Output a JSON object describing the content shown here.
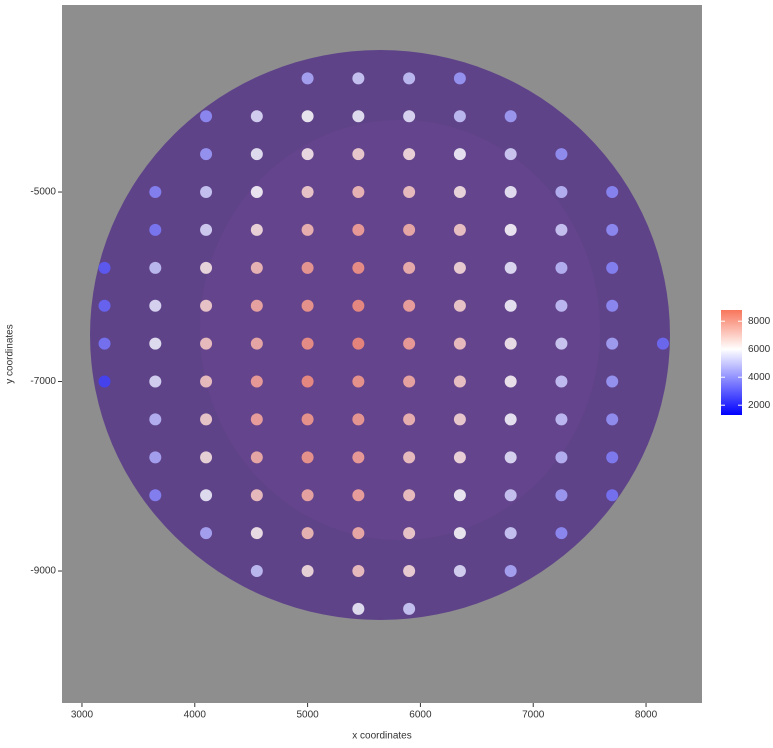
{
  "chart_data": {
    "type": "scatter",
    "x_label": "x coordinates",
    "y_label": "y coordinates",
    "xlim": [
      2823,
      8496
    ],
    "ylim": [
      -10393,
      -3026
    ],
    "xticks": [
      3000,
      4000,
      5000,
      6000,
      7000,
      8000
    ],
    "yticks": [
      -5000,
      -7000,
      -9000
    ],
    "x": [
      5000,
      5450,
      5900,
      6350,
      4100,
      4550,
      5000,
      5450,
      5900,
      6350,
      6800,
      4100,
      4550,
      5000,
      5450,
      5900,
      6350,
      6800,
      7250,
      3650,
      4100,
      4550,
      5000,
      5450,
      5900,
      6350,
      6800,
      7250,
      7700,
      3650,
      4100,
      4550,
      5000,
      5450,
      5900,
      6350,
      6800,
      7250,
      7700,
      3200,
      3650,
      4100,
      4550,
      5000,
      5450,
      5900,
      6350,
      6800,
      7250,
      7700,
      3200,
      3650,
      4100,
      4550,
      5000,
      5450,
      5900,
      6350,
      6800,
      7250,
      7700,
      3200,
      3650,
      4100,
      4550,
      5000,
      5450,
      5900,
      6350,
      6800,
      7250,
      7700,
      8150,
      3200,
      3650,
      4100,
      4550,
      5000,
      5450,
      5900,
      6350,
      6800,
      7250,
      7700,
      3650,
      4100,
      4550,
      5000,
      5450,
      5900,
      6350,
      6800,
      7250,
      7700,
      3650,
      4100,
      4550,
      5000,
      5450,
      5900,
      6350,
      6800,
      7250,
      7700,
      3650,
      4100,
      4550,
      5000,
      5450,
      5900,
      6350,
      6800,
      7250,
      7700,
      4100,
      4550,
      5000,
      5450,
      5900,
      6350,
      6800,
      7250,
      4550,
      5000,
      5450,
      5900,
      6350,
      6800,
      5450,
      5900
    ],
    "y": [
      -3800,
      -3800,
      -3800,
      -3800,
      -4200,
      -4200,
      -4200,
      -4200,
      -4200,
      -4200,
      -4200,
      -4600,
      -4600,
      -4600,
      -4600,
      -4600,
      -4600,
      -4600,
      -4600,
      -5000,
      -5000,
      -5000,
      -5000,
      -5000,
      -5000,
      -5000,
      -5000,
      -5000,
      -5000,
      -5400,
      -5400,
      -5400,
      -5400,
      -5400,
      -5400,
      -5400,
      -5400,
      -5400,
      -5400,
      -5800,
      -5800,
      -5800,
      -5800,
      -5800,
      -5800,
      -5800,
      -5800,
      -5800,
      -5800,
      -5800,
      -6200,
      -6200,
      -6200,
      -6200,
      -6200,
      -6200,
      -6200,
      -6200,
      -6200,
      -6200,
      -6200,
      -6600,
      -6600,
      -6600,
      -6600,
      -6600,
      -6600,
      -6600,
      -6600,
      -6600,
      -6600,
      -6600,
      -6600,
      -7000,
      -7000,
      -7000,
      -7000,
      -7000,
      -7000,
      -7000,
      -7000,
      -7000,
      -7000,
      -7000,
      -7400,
      -7400,
      -7400,
      -7400,
      -7400,
      -7400,
      -7400,
      -7400,
      -7400,
      -7400,
      -7800,
      -7800,
      -7800,
      -7800,
      -7800,
      -7800,
      -7800,
      -7800,
      -7800,
      -7800,
      -8200,
      -8200,
      -8200,
      -8200,
      -8200,
      -8200,
      -8200,
      -8200,
      -8200,
      -8200,
      -8600,
      -8600,
      -8600,
      -8600,
      -8600,
      -8600,
      -8600,
      -8600,
      -9000,
      -9000,
      -9000,
      -9000,
      -9000,
      -9000,
      -9400,
      -9400
    ],
    "values": [
      4500,
      5200,
      5000,
      4200,
      4000,
      5500,
      6000,
      5800,
      5600,
      5000,
      4300,
      4200,
      5800,
      6300,
      6700,
      6500,
      5900,
      5300,
      4100,
      3800,
      5200,
      6000,
      6800,
      7200,
      7000,
      6400,
      5800,
      4800,
      3900,
      3600,
      5400,
      6500,
      7300,
      7800,
      7500,
      6900,
      6000,
      5200,
      4000,
      3000,
      5000,
      6400,
      7200,
      7900,
      8100,
      7400,
      6600,
      5700,
      4800,
      3800,
      3200,
      5600,
      6800,
      7600,
      8000,
      8200,
      7700,
      6800,
      5900,
      5000,
      4000,
      3500,
      5800,
      7000,
      7500,
      8100,
      8300,
      7800,
      7000,
      6200,
      5300,
      4400,
      3300,
      2500,
      5500,
      7000,
      7800,
      8200,
      8000,
      7600,
      6900,
      6100,
      5100,
      4200,
      4800,
      6800,
      7700,
      8000,
      7900,
      7300,
      6700,
      5900,
      5000,
      4100,
      4500,
      6500,
      7500,
      8000,
      7800,
      7000,
      6500,
      5600,
      4800,
      3700,
      3800,
      5800,
      7000,
      7600,
      7700,
      7000,
      6000,
      5200,
      4300,
      3500,
      4500,
      6200,
      7200,
      7500,
      6800,
      6000,
      5200,
      4000,
      5000,
      6500,
      7000,
      6600,
      5500,
      4500,
      5800,
      5200
    ],
    "color_scale": {
      "low": "#0000ff",
      "mid": "#ffffff",
      "high": "#f8765c",
      "midpoint": 6000,
      "limits": [
        1300,
        8800
      ],
      "ticks": [
        2000,
        4000,
        6000,
        8000
      ]
    }
  }
}
